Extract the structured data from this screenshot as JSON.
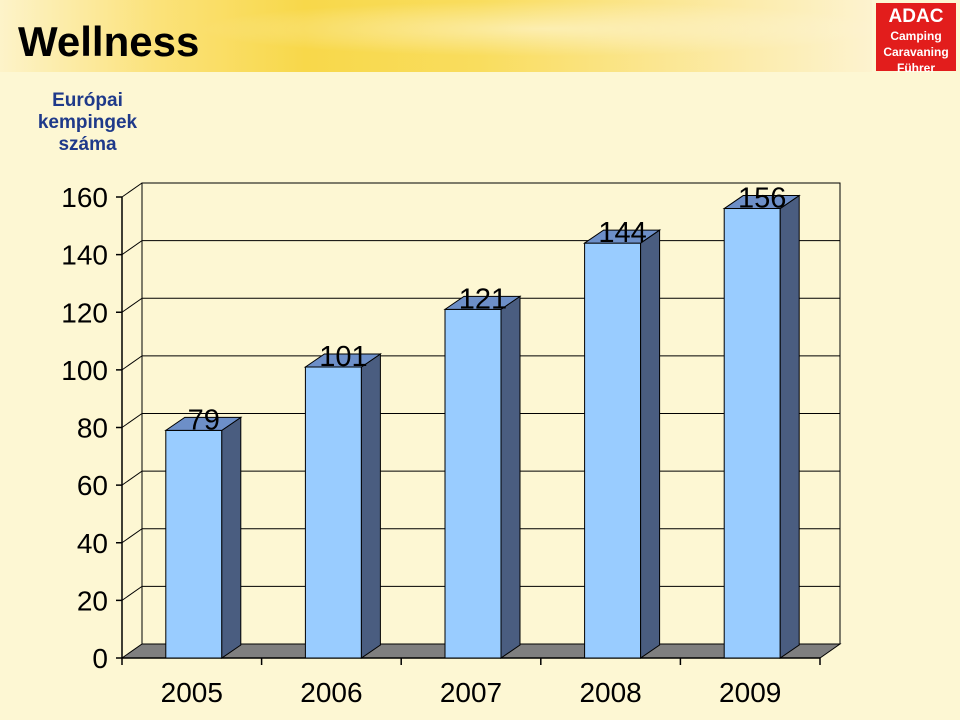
{
  "title": "Wellness",
  "logo": {
    "name": "ADAC",
    "lines": [
      "Camping",
      "Caravaning",
      "Führer"
    ]
  },
  "colors": {
    "bar_front": "#99ccff",
    "bar_side": "#4a5d80",
    "bar_top": "#6d8fc8",
    "floor": "#7f7f7f",
    "logo_bg": "#e21d1c"
  },
  "chart_data": {
    "type": "bar",
    "title": "Wellness",
    "ylabel": [
      "Európai",
      "kempingek",
      "száma"
    ],
    "xlabel": "",
    "categories": [
      "2005",
      "2006",
      "2007",
      "2008",
      "2009"
    ],
    "values": [
      79,
      101,
      121,
      144,
      156
    ],
    "data_labels": [
      "79",
      "101",
      "121",
      "144",
      "156"
    ],
    "ylim": [
      0,
      160
    ],
    "yticks": [
      0,
      20,
      40,
      60,
      80,
      100,
      120,
      140,
      160
    ],
    "grid": true,
    "legend": "none",
    "style": "3d"
  }
}
